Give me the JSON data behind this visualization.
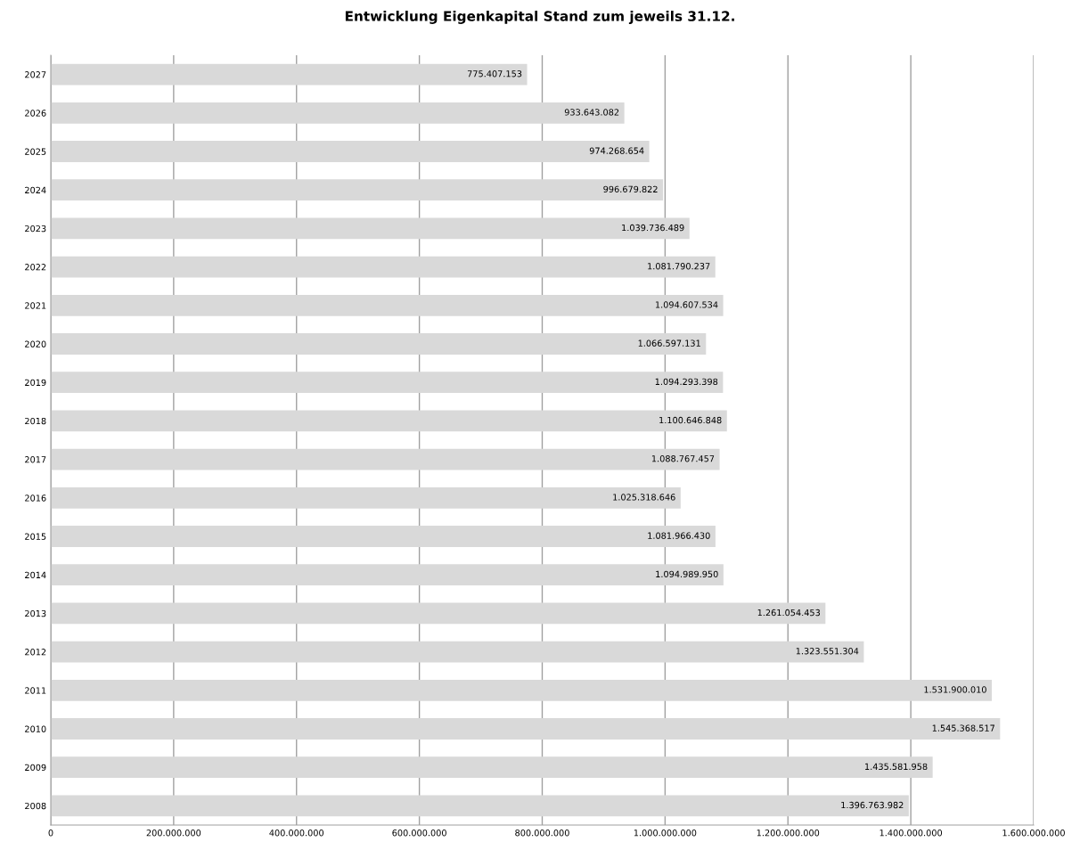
{
  "chart_data": {
    "type": "bar",
    "orientation": "horizontal",
    "title": "Entwicklung Eigenkapital Stand zum jeweils 31.12.",
    "categories": [
      "2027",
      "2026",
      "2025",
      "2024",
      "2023",
      "2022",
      "2021",
      "2020",
      "2019",
      "2018",
      "2017",
      "2016",
      "2015",
      "2014",
      "2013",
      "2012",
      "2011",
      "2010",
      "2009",
      "2008"
    ],
    "values": [
      775407153,
      933643082,
      974268654,
      996679822,
      1039736489,
      1081790237,
      1094607534,
      1066597131,
      1094293398,
      1100646848,
      1088767457,
      1025318646,
      1081966430,
      1094989950,
      1261054453,
      1323551304,
      1531900010,
      1545368517,
      1435581958,
      1396763982
    ],
    "value_labels": [
      "775.407.153",
      "933.643.082",
      "974.268.654",
      "996.679.822",
      "1.039.736.489",
      "1.081.790.237",
      "1.094.607.534",
      "1.066.597.131",
      "1.094.293.398",
      "1.100.646.848",
      "1.088.767.457",
      "1.025.318.646",
      "1.081.966.430",
      "1.094.989.950",
      "1.261.054.453",
      "1.323.551.304",
      "1.531.900.010",
      "1.545.368.517",
      "1.435.581.958",
      "1.396.763.982"
    ],
    "color": "#d9d9d9",
    "xlim": [
      0,
      1600000000
    ],
    "xticks": [
      0,
      {
        "value": 200000000,
        "label": "200.000.000"
      },
      {
        "value": 400000000,
        "label": "400.000.000"
      },
      {
        "value": 600000000,
        "label": "600.000.000"
      },
      {
        "value": 800000000,
        "label": "800.000.000"
      },
      {
        "value": 1000000000,
        "label": "1.000.000.000"
      },
      {
        "value": 1200000000,
        "label": "1.200.000.000"
      },
      {
        "value": 1400000000,
        "label": "1.400.000.000"
      },
      {
        "value": 1600000000,
        "label": "1.600.000.000"
      }
    ],
    "grid": "x"
  }
}
